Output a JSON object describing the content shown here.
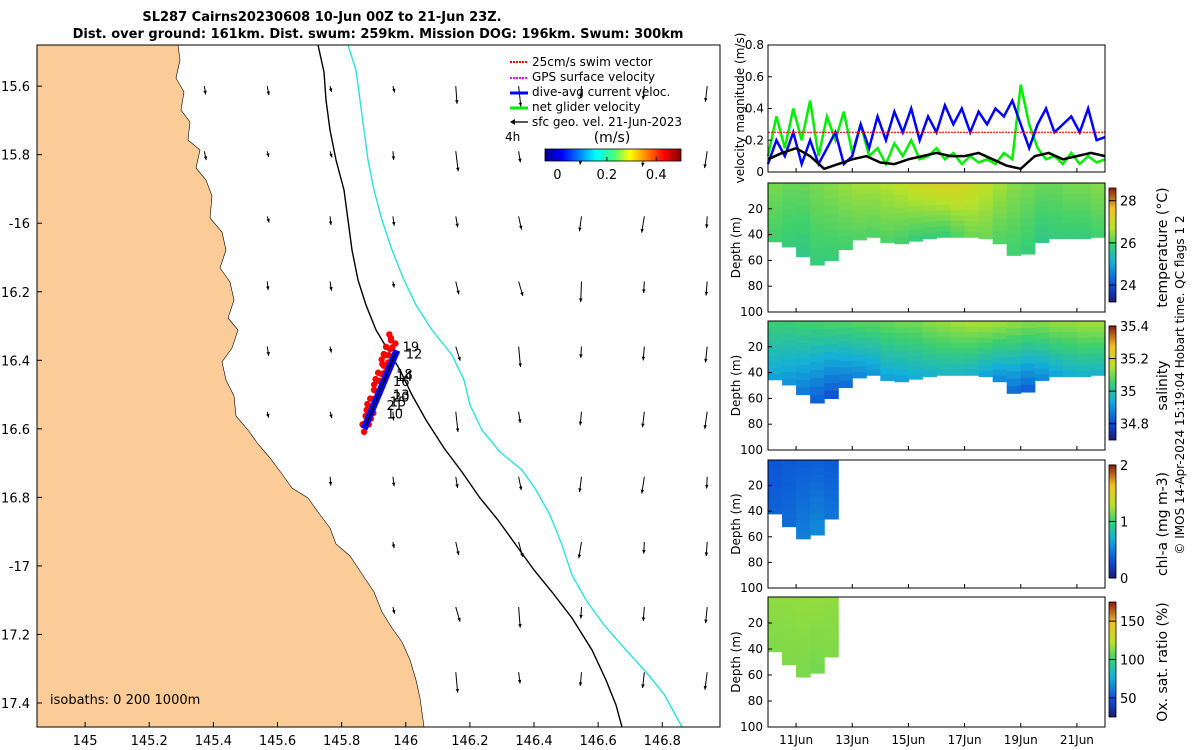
{
  "title": {
    "line1": "SL287 Cairns20230608 10-Jun 00Z to 21-Jun 23Z.",
    "line2": "Dist. over ground: 161km. Dist. swum: 259km. Mission DOG: 196km. Swum: 300km"
  },
  "credit": "© IMOS 14-Apr-2024 15:19:04 Hobart time. QC flags 1  2",
  "colors": {
    "land": "#fbcb98",
    "isobath_200": "#000000",
    "isobath_1000": "#2de0e0",
    "swim_vector": "#ff0000",
    "gps_velocity": "#ff00ff",
    "dive_avg": "#0000ff",
    "net_velocity": "#00ee00",
    "sfc_geo": "#000000"
  },
  "chart_data": [
    {
      "id": "map",
      "type": "scatter",
      "title": "glider track map",
      "xlabel": "",
      "ylabel": "",
      "xlim": [
        144.85,
        146.98
      ],
      "ylim": [
        -17.47,
        -15.48
      ],
      "xticks": [
        145,
        145.2,
        145.4,
        145.6,
        145.8,
        146,
        146.2,
        146.4,
        146.6,
        146.8
      ],
      "xticklabels": [
        "145",
        "145.2",
        "145.4",
        "145.6",
        "145.8",
        "146",
        "146.2",
        "146.4",
        "146.6",
        "146.8"
      ],
      "yticks": [
        -15.6,
        -15.8,
        -16,
        -16.2,
        -16.4,
        -16.6,
        -16.8,
        -17,
        -17.2,
        -17.4
      ],
      "yticklabels": [
        "15.6",
        "15.8",
        "-16",
        "16.2",
        "16.4",
        "16.6",
        "16.8",
        "-17",
        "17.2",
        "17.4"
      ],
      "legend": [
        {
          "label": "25cm/s swim vector",
          "color": "#ff0000",
          "style": "dotted"
        },
        {
          "label": "GPS surface velocity",
          "color": "#ff00ff",
          "style": "dotted"
        },
        {
          "label": "dive-avg current veloc.",
          "color": "#0000ff",
          "style": "solid"
        },
        {
          "label": "net glider velocity",
          "color": "#00ee00",
          "style": "solid"
        },
        {
          "label": "sfc geo. vel. 21-Jun-2023",
          "color": "#000000",
          "style": "arrow"
        }
      ],
      "legend_extra": "4h",
      "colorbar": {
        "label": "(m/s)",
        "ticks": [
          0,
          0.2,
          0.4
        ],
        "ticklabels": [
          "0",
          "0.2",
          "0.4"
        ],
        "range": [
          -0.05,
          0.5
        ]
      },
      "isobaths_text": "isobaths: 0   200  1000m",
      "track_day_labels": [
        {
          "text": "19",
          "lon": 145.99,
          "lat": -16.375
        },
        {
          "text": "12",
          "lon": 146.0,
          "lat": -16.395
        },
        {
          "text": "18",
          "lon": 145.97,
          "lat": -16.455
        },
        {
          "text": "14",
          "lon": 145.97,
          "lat": -16.46
        },
        {
          "text": "16",
          "lon": 145.96,
          "lat": -16.475
        },
        {
          "text": "13",
          "lon": 145.96,
          "lat": -16.515
        },
        {
          "text": "20",
          "lon": 145.96,
          "lat": -16.52
        },
        {
          "text": "15",
          "lon": 145.95,
          "lat": -16.535
        },
        {
          "text": "21",
          "lon": 145.94,
          "lat": -16.545
        },
        {
          "text": "10",
          "lon": 145.94,
          "lat": -16.57
        }
      ]
    },
    {
      "id": "velocity",
      "type": "line",
      "xlabel": "",
      "ylabel": "velocity magnitude (m/s)",
      "xlim": [
        10.0,
        22.0
      ],
      "ylim": [
        0,
        0.8
      ],
      "yticks": [
        0,
        0.2,
        0.4,
        0.6,
        0.8
      ],
      "yticklabels": [
        "0",
        "0.2",
        "0.4",
        "0.6",
        "0.8"
      ],
      "series": [
        {
          "name": "net glider velocity",
          "color": "#00ee00",
          "x": [
            10.0,
            10.3,
            10.6,
            10.9,
            11.2,
            11.5,
            11.8,
            12.1,
            12.4,
            12.7,
            13.0,
            13.3,
            13.6,
            13.9,
            14.2,
            14.5,
            14.8,
            15.1,
            15.4,
            15.7,
            16.0,
            16.3,
            16.6,
            16.9,
            17.2,
            17.5,
            17.8,
            18.1,
            18.4,
            18.7,
            19.0,
            19.3,
            19.6,
            19.9,
            20.2,
            20.5,
            20.8,
            21.1,
            21.4,
            21.7,
            22.0
          ],
          "values": [
            0.1,
            0.35,
            0.15,
            0.4,
            0.2,
            0.45,
            0.1,
            0.35,
            0.2,
            0.38,
            0.12,
            0.3,
            0.1,
            0.15,
            0.05,
            0.18,
            0.1,
            0.2,
            0.08,
            0.1,
            0.15,
            0.08,
            0.12,
            0.05,
            0.1,
            0.06,
            0.08,
            0.05,
            0.12,
            0.08,
            0.55,
            0.3,
            0.15,
            0.08,
            0.1,
            0.05,
            0.12,
            0.05,
            0.1,
            0.06,
            0.08
          ]
        },
        {
          "name": "dive-avg current veloc.",
          "color": "#0000ff",
          "x": [
            10.0,
            10.3,
            10.6,
            10.9,
            11.2,
            11.5,
            11.8,
            12.1,
            12.4,
            12.7,
            13.0,
            13.3,
            13.6,
            13.9,
            14.2,
            14.5,
            14.8,
            15.1,
            15.4,
            15.7,
            16.0,
            16.3,
            16.6,
            16.9,
            17.2,
            17.5,
            17.8,
            18.1,
            18.4,
            18.7,
            19.0,
            19.3,
            19.6,
            19.9,
            20.2,
            20.5,
            20.8,
            21.1,
            21.4,
            21.7,
            22.0
          ],
          "values": [
            0.05,
            0.2,
            0.1,
            0.25,
            0.05,
            0.2,
            0.05,
            0.15,
            0.25,
            0.05,
            0.1,
            0.3,
            0.15,
            0.35,
            0.2,
            0.38,
            0.25,
            0.4,
            0.2,
            0.35,
            0.25,
            0.42,
            0.3,
            0.4,
            0.25,
            0.38,
            0.3,
            0.4,
            0.35,
            0.45,
            0.3,
            0.15,
            0.3,
            0.4,
            0.25,
            0.3,
            0.35,
            0.25,
            0.4,
            0.2,
            0.22
          ]
        },
        {
          "name": "25cm/s swim vector",
          "color": "#ff0000",
          "x": [
            10.0,
            22.0
          ],
          "values": [
            0.25,
            0.25
          ]
        },
        {
          "name": "sfc geo. vel.",
          "color": "#000000",
          "x": [
            10.0,
            10.5,
            11.0,
            11.5,
            12.0,
            12.5,
            13.0,
            13.5,
            14.0,
            14.5,
            15.0,
            15.5,
            16.0,
            16.5,
            17.0,
            17.5,
            18.0,
            18.5,
            19.0,
            19.5,
            20.0,
            20.5,
            21.0,
            21.5,
            22.0
          ],
          "values": [
            0.08,
            0.12,
            0.15,
            0.1,
            0.02,
            0.05,
            0.08,
            0.1,
            0.06,
            0.05,
            0.08,
            0.1,
            0.12,
            0.1,
            0.1,
            0.12,
            0.08,
            0.04,
            0.02,
            0.1,
            0.12,
            0.08,
            0.1,
            0.12,
            0.1
          ]
        }
      ]
    },
    {
      "id": "temperature",
      "type": "heatmap",
      "ylabel": "Depth (m)",
      "yticks": [
        20,
        40,
        60,
        80,
        100
      ],
      "yticklabels": [
        "20",
        "40",
        "60",
        "80",
        "100"
      ],
      "ylim": [
        0,
        100
      ],
      "colorbar": {
        "label": "temperature (°C)",
        "range": [
          23.2,
          28.6
        ],
        "ticks": [
          24,
          26,
          28
        ],
        "ticklabels": [
          "24",
          "26",
          "28"
        ]
      },
      "x": [
        10.0,
        10.5,
        11.0,
        11.5,
        12.0,
        12.5,
        13.0,
        13.5,
        14.0,
        14.5,
        15.0,
        15.5,
        16.0,
        16.5,
        17.0,
        17.5,
        18.0,
        18.5,
        19.0,
        19.5,
        20.0,
        20.5,
        21.0,
        21.5,
        22.0
      ],
      "bottom_depth": [
        44,
        47,
        52,
        62,
        65,
        55,
        48,
        40,
        44,
        48,
        46,
        44,
        42,
        42,
        42,
        42,
        44,
        50,
        62,
        48,
        44,
        42,
        44,
        42,
        42
      ],
      "values_surface": [
        26.3,
        26.2,
        26.2,
        26.3,
        26.4,
        26.5,
        26.6,
        26.6,
        26.7,
        26.8,
        27.0,
        27.1,
        27.2,
        27.2,
        27.0,
        26.8,
        26.6,
        26.4,
        26.3,
        26.2,
        26.2,
        26.3,
        26.3,
        26.4,
        26.4
      ],
      "values_bottom": [
        25.9,
        25.8,
        25.7,
        25.8,
        25.8,
        25.9,
        26.0,
        26.0,
        26.0,
        25.9,
        25.8,
        25.8,
        25.8,
        26.0,
        26.2,
        26.2,
        26.0,
        25.9,
        25.8,
        25.7,
        25.8,
        25.8,
        25.8,
        25.9,
        25.9
      ]
    },
    {
      "id": "salinity",
      "type": "heatmap",
      "ylabel": "Depth (m)",
      "yticks": [
        20,
        40,
        60,
        80,
        100
      ],
      "yticklabels": [
        "20",
        "40",
        "60",
        "80",
        "100"
      ],
      "ylim": [
        0,
        100
      ],
      "colorbar": {
        "label": "salinity",
        "range": [
          34.7,
          35.4
        ],
        "ticks": [
          34.8,
          35,
          35.2,
          35.4
        ],
        "ticklabels": [
          "34.8",
          "35",
          "35.2",
          "35.4"
        ]
      },
      "x": [
        10.0,
        10.5,
        11.0,
        11.5,
        12.0,
        12.5,
        13.0,
        13.5,
        14.0,
        14.5,
        15.0,
        15.5,
        16.0,
        16.5,
        17.0,
        17.5,
        18.0,
        18.5,
        19.0,
        19.5,
        20.0,
        20.5,
        21.0,
        21.5,
        22.0
      ],
      "bottom_depth": [
        44,
        47,
        52,
        62,
        65,
        55,
        48,
        40,
        44,
        48,
        46,
        44,
        42,
        42,
        42,
        42,
        44,
        50,
        62,
        48,
        44,
        42,
        44,
        42,
        42
      ],
      "values_surface": [
        35.05,
        35.05,
        35.06,
        35.06,
        35.07,
        35.07,
        35.08,
        35.08,
        35.09,
        35.1,
        35.1,
        35.12,
        35.13,
        35.14,
        35.15,
        35.15,
        35.14,
        35.13,
        35.12,
        35.12,
        35.13,
        35.13,
        35.14,
        35.14,
        35.14
      ],
      "values_bottom": [
        34.92,
        34.9,
        34.86,
        34.82,
        34.8,
        34.84,
        34.88,
        34.9,
        34.92,
        34.92,
        34.94,
        34.95,
        34.96,
        34.96,
        34.95,
        34.92,
        34.88,
        34.84,
        34.82,
        34.88,
        34.92,
        34.94,
        34.95,
        34.95,
        34.95
      ]
    },
    {
      "id": "chla",
      "type": "heatmap",
      "ylabel": "Depth (m)",
      "yticks": [
        20,
        40,
        60,
        80,
        100
      ],
      "yticklabels": [
        "20",
        "40",
        "60",
        "80",
        "100"
      ],
      "ylim": [
        0,
        100
      ],
      "colorbar": {
        "label": "chl-a (mg m-3)",
        "range": [
          0,
          2
        ],
        "ticks": [
          0,
          1,
          2
        ],
        "ticklabels": [
          "0",
          "1",
          "2"
        ]
      },
      "x": [
        10.0,
        10.5,
        11.0,
        11.5,
        12.0,
        12.5
      ],
      "bottom_depth": [
        38,
        46,
        58,
        65,
        52,
        40
      ],
      "values_surface": [
        0.32,
        0.34,
        0.35,
        0.36,
        0.34,
        0.33
      ],
      "values_bottom": [
        0.38,
        0.42,
        0.5,
        0.55,
        0.46,
        0.4
      ]
    },
    {
      "id": "oxygen",
      "type": "heatmap",
      "ylabel": "Depth (m)",
      "yticks": [
        20,
        40,
        60,
        80,
        100
      ],
      "yticklabels": [
        "20",
        "40",
        "60",
        "80",
        "100"
      ],
      "ylim": [
        0,
        100
      ],
      "colorbar": {
        "label": "Ox. sat. ratio (%)",
        "range": [
          25,
          175
        ],
        "ticks": [
          50,
          100,
          150
        ],
        "ticklabels": [
          "50",
          "100",
          "150"
        ]
      },
      "x": [
        10.0,
        10.5,
        11.0,
        11.5,
        12.0,
        12.5
      ],
      "bottom_depth": [
        38,
        46,
        58,
        65,
        52,
        40
      ],
      "values_surface": [
        115,
        115,
        116,
        116,
        115,
        115
      ],
      "values_bottom": [
        112,
        112,
        111,
        110,
        112,
        113
      ]
    }
  ],
  "time_axis": {
    "ticks": [
      11,
      13,
      15,
      17,
      19,
      21
    ],
    "ticklabels": [
      "11Jun",
      "13Jun",
      "15Jun",
      "17Jun",
      "19Jun",
      "21Jun"
    ]
  }
}
